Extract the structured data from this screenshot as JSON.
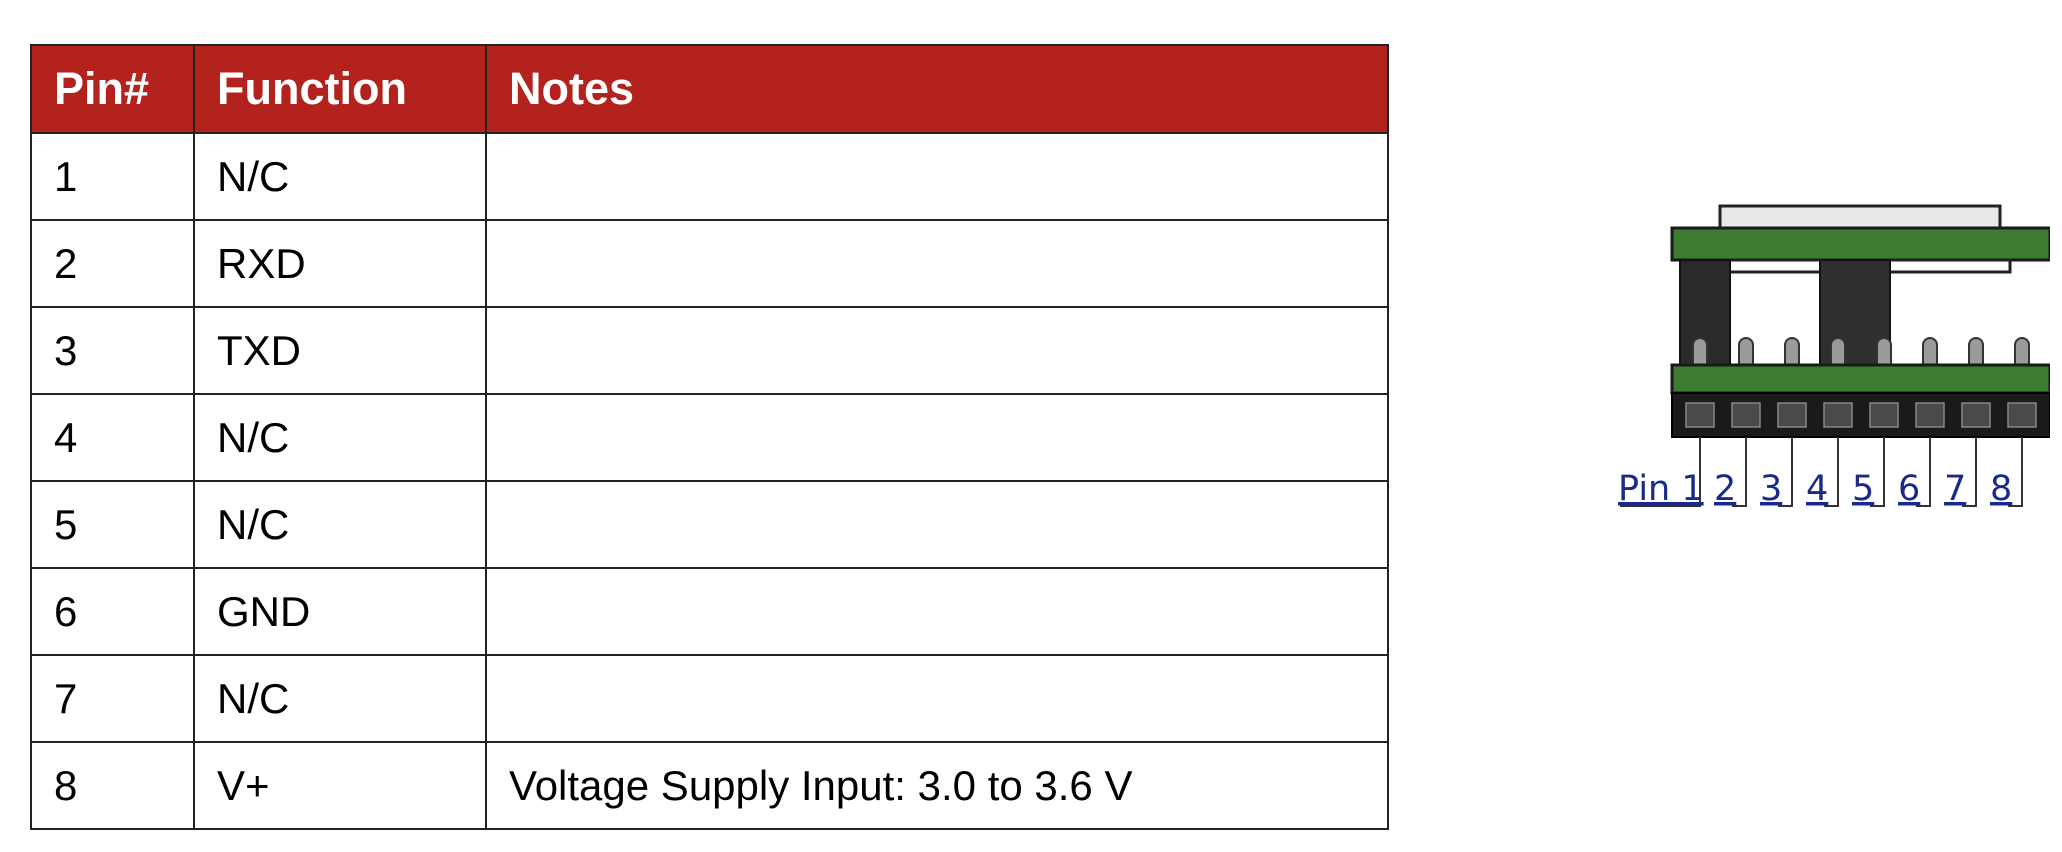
{
  "table": {
    "headers": [
      "Pin#",
      "Function",
      "Notes"
    ],
    "rows": [
      {
        "pin": "1",
        "function": "N/C",
        "notes": ""
      },
      {
        "pin": "2",
        "function": "RXD",
        "notes": ""
      },
      {
        "pin": "3",
        "function": "TXD",
        "notes": ""
      },
      {
        "pin": "4",
        "function": "N/C",
        "notes": ""
      },
      {
        "pin": "5",
        "function": "N/C",
        "notes": ""
      },
      {
        "pin": "6",
        "function": "GND",
        "notes": ""
      },
      {
        "pin": "7",
        "function": "N/C",
        "notes": ""
      },
      {
        "pin": "8",
        "function": "V+",
        "notes": "Voltage Supply Input: 3.0 to 3.6 V"
      }
    ]
  },
  "diagram": {
    "pin_labels": [
      "Pin 1",
      "2",
      "3",
      "4",
      "5",
      "6",
      "7",
      "8"
    ]
  },
  "colors": {
    "header_background": "#b3221c",
    "header_text": "#ffffff",
    "board_green": "#3d7a32",
    "connector_black": "#1a1a1a",
    "label_blue": "#1a2a8a"
  }
}
